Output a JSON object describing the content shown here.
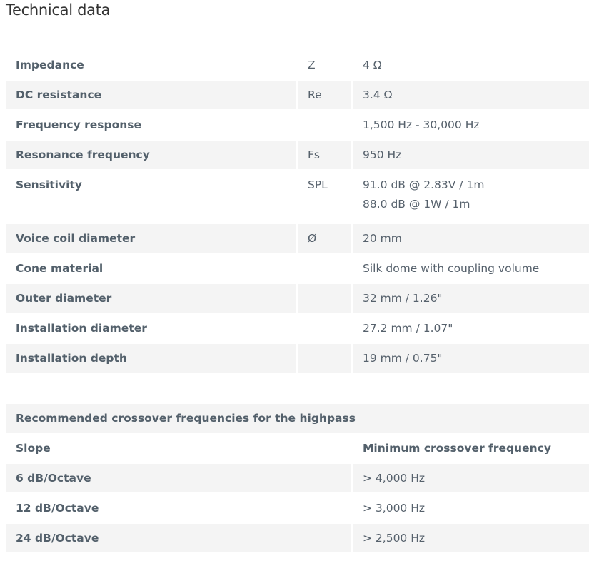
{
  "title": "Technical data",
  "specs": [
    {
      "label": "Impedance",
      "symbol": "Z",
      "value": "4 Ω"
    },
    {
      "label": "DC resistance",
      "symbol": "Re",
      "value": "3.4 Ω"
    },
    {
      "label": "Frequency response",
      "symbol": "",
      "value": "1,500 Hz - 30,000 Hz"
    },
    {
      "label": "Resonance frequency",
      "symbol": "Fs",
      "value": "950 Hz"
    },
    {
      "label": "Sensitivity",
      "symbol": "SPL",
      "value": "91.0 dB @ 2.83V / 1m",
      "value2": "88.0 dB @ 1W / 1m"
    },
    {
      "label": "Voice coil diameter",
      "symbol": "Ø",
      "value": "20 mm"
    },
    {
      "label": "Cone material",
      "symbol": "",
      "value": "Silk dome with coupling volume"
    },
    {
      "label": "Outer diameter",
      "symbol": "",
      "value": "32 mm / 1.26\""
    },
    {
      "label": "Installation diameter",
      "symbol": "",
      "value": "27.2 mm / 1.07\""
    },
    {
      "label": "Installation depth",
      "symbol": "",
      "value": "19 mm / 0.75\""
    }
  ],
  "crossover": {
    "heading": "Recommended crossover frequencies for the highpass",
    "col1": "Slope",
    "col2": "Minimum crossover frequency",
    "rows": [
      {
        "slope": "6 dB/Octave",
        "freq": "> 4,000 Hz"
      },
      {
        "slope": "12 dB/Octave",
        "freq": "> 3,000 Hz"
      },
      {
        "slope": "24 dB/Octave",
        "freq": "> 2,500 Hz"
      }
    ]
  }
}
